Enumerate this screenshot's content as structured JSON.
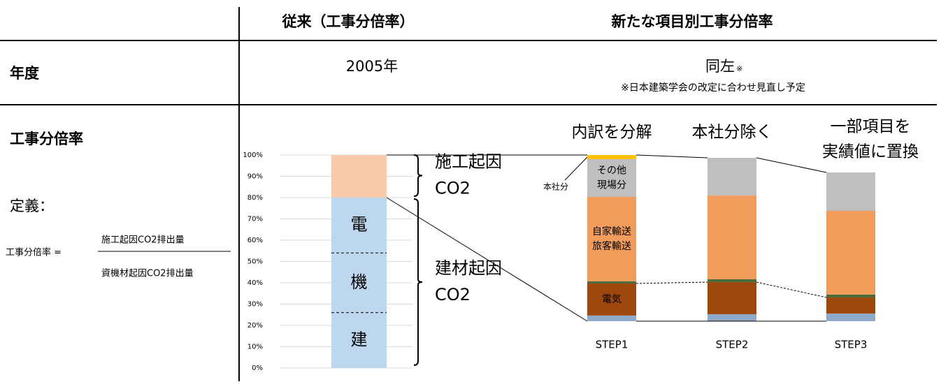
{
  "header": {
    "old": "従来（工事分倍率）",
    "new": "新たな項目別工事分倍率"
  },
  "year_row": {
    "label": "年度",
    "old": "2005年",
    "new": "同左",
    "new_mark": "※",
    "note": "※日本建築学会の改定に合わせ見直し予定"
  },
  "ratio_row": {
    "label": "工事分倍率",
    "definition": "定義：",
    "formula": {
      "lhs": "工事分倍率 =",
      "numerator": "施工起因CO2排出量",
      "denominator": "資機材起因CO2排出量"
    }
  },
  "chart_data": [
    {
      "type": "stacked_bar",
      "ylim": [
        0,
        100
      ],
      "grid": true,
      "yticks": [
        {
          "value": 0,
          "label": "0%"
        },
        {
          "value": 10,
          "label": "10%"
        },
        {
          "value": 20,
          "label": "20%"
        },
        {
          "value": 30,
          "label": "30%"
        },
        {
          "value": 40,
          "label": "40%"
        },
        {
          "value": 50,
          "label": "50%"
        },
        {
          "value": 60,
          "label": "60%"
        },
        {
          "value": 70,
          "label": "70%"
        },
        {
          "value": 80,
          "label": "80%"
        },
        {
          "value": 90,
          "label": "90%"
        },
        {
          "value": 100,
          "label": "100%"
        }
      ],
      "series": [
        {
          "label": "建",
          "color": "#bdd7ee",
          "values": [
            26
          ]
        },
        {
          "label": "機",
          "color": "#bdd7ee",
          "values": [
            28
          ]
        },
        {
          "label": "電",
          "color": "#bdd7ee",
          "values": [
            26
          ]
        },
        {
          "color": "#f8cbad",
          "values": [
            20
          ]
        }
      ],
      "braces": [
        [
          "建材起因",
          "CO2"
        ],
        [
          "施工起因",
          "CO2"
        ]
      ]
    },
    {
      "type": "stacked_bar",
      "categories": [
        "STEP1",
        "STEP2",
        "STEP3"
      ],
      "series": [
        {
          "color": "#8fa9c8",
          "values": [
            3.4,
            4.2,
            4.6
          ]
        },
        {
          "color": "#9e480e",
          "values": [
            19.3,
            19.3,
            9.7
          ]
        },
        {
          "color": "#4a6b3a",
          "values": [
            1.3,
            1.7,
            1.7
          ]
        },
        {
          "color": "#f19c5b",
          "values": [
            50.8,
            50.4,
            50.4
          ]
        },
        {
          "color": "#bfbfbf",
          "values": [
            22.7,
            22.7,
            23.1
          ]
        },
        {
          "color": "#ffc000",
          "values": [
            2.5,
            0,
            0
          ]
        }
      ],
      "segment_labels": {
        "1": [
          "電気"
        ],
        "3": [
          "自家輸送",
          "旅客輸送"
        ],
        "4": [
          "その他",
          "現場分"
        ]
      },
      "outside_label": "本社分",
      "step_notes": [
        [
          "内訳を分解"
        ],
        [
          "本社分除く"
        ],
        [
          "一部項目を",
          "実績値に置換"
        ]
      ]
    }
  ]
}
